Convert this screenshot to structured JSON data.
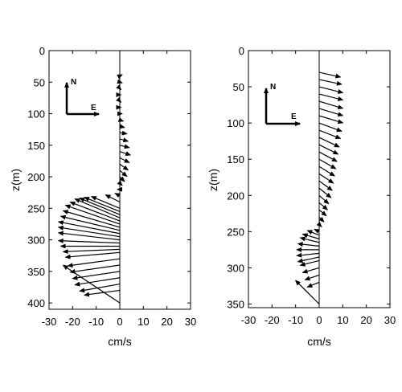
{
  "chart_data": [
    {
      "type": "quiver",
      "title": "",
      "xlabel": "cm/s",
      "ylabel": "z(m)",
      "xlim": [
        -30,
        30
      ],
      "ylim": [
        0,
        410
      ],
      "y_reversed": true,
      "xticks": [
        -30,
        -20,
        -10,
        0,
        10,
        20,
        30
      ],
      "yticks": [
        0,
        50,
        100,
        150,
        200,
        250,
        300,
        350,
        400
      ],
      "xtick_labels": [
        "-30",
        "-20",
        "-10",
        "0",
        "10",
        "20",
        "30"
      ],
      "ytick_labels": [
        "0",
        "50",
        "100",
        "150",
        "200",
        "250",
        "300",
        "350",
        "400"
      ],
      "grid": false,
      "compass": {
        "north_label": "N",
        "east_label": "E",
        "placement": "upper-left"
      },
      "vectors": [
        {
          "z": 40,
          "u": 1,
          "v": 0.5
        },
        {
          "z": 50,
          "u": 1,
          "v": -0.3
        },
        {
          "z": 60,
          "u": 0.5,
          "v": -0.5
        },
        {
          "z": 70,
          "u": 0.5,
          "v": 0
        },
        {
          "z": 80,
          "u": 0.5,
          "v": -0.5
        },
        {
          "z": 90,
          "u": 0.5,
          "v": 0
        },
        {
          "z": 100,
          "u": 1,
          "v": 0
        },
        {
          "z": 110,
          "u": 1.5,
          "v": -0.5
        },
        {
          "z": 120,
          "u": 2,
          "v": -0.5
        },
        {
          "z": 130,
          "u": 3,
          "v": -0.5
        },
        {
          "z": 140,
          "u": 3.5,
          "v": -1
        },
        {
          "z": 150,
          "u": 4,
          "v": -1
        },
        {
          "z": 160,
          "u": 4.5,
          "v": -1.5
        },
        {
          "z": 170,
          "u": 4,
          "v": -2
        },
        {
          "z": 180,
          "u": 3.5,
          "v": -2.5
        },
        {
          "z": 190,
          "u": 3,
          "v": -2.5
        },
        {
          "z": 200,
          "u": 2,
          "v": -2
        },
        {
          "z": 210,
          "u": 1,
          "v": -1
        },
        {
          "z": 220,
          "u": -1,
          "v": 0
        },
        {
          "z": 230,
          "u": -2,
          "v": 1
        },
        {
          "z": 240,
          "u": -6,
          "v": 3
        },
        {
          "z": 250,
          "u": -12,
          "v": 5
        },
        {
          "z": 255,
          "u": -15,
          "v": 6
        },
        {
          "z": 260,
          "u": -17,
          "v": 7
        },
        {
          "z": 265,
          "u": -19,
          "v": 8
        },
        {
          "z": 270,
          "u": -21,
          "v": 8
        },
        {
          "z": 275,
          "u": -23,
          "v": 8
        },
        {
          "z": 280,
          "u": -24,
          "v": 7
        },
        {
          "z": 285,
          "u": -25,
          "v": 6
        },
        {
          "z": 290,
          "u": -26,
          "v": 5
        },
        {
          "z": 295,
          "u": -26,
          "v": 4
        },
        {
          "z": 300,
          "u": -26,
          "v": 3
        },
        {
          "z": 305,
          "u": -26,
          "v": 1
        },
        {
          "z": 310,
          "u": -25,
          "v": 0
        },
        {
          "z": 315,
          "u": -24,
          "v": -1
        },
        {
          "z": 320,
          "u": -23,
          "v": -2
        },
        {
          "z": 330,
          "u": -22,
          "v": -3
        },
        {
          "z": 340,
          "u": -21,
          "v": -3
        },
        {
          "z": 350,
          "u": -20,
          "v": -3
        },
        {
          "z": 360,
          "u": -19,
          "v": -3
        },
        {
          "z": 370,
          "u": -17,
          "v": -3
        },
        {
          "z": 380,
          "u": -15,
          "v": -2
        },
        {
          "z": 400,
          "u": -24,
          "v": 16
        }
      ]
    },
    {
      "type": "quiver",
      "title": "",
      "xlabel": "cm/s",
      "ylabel": "z(m)",
      "xlim": [
        -30,
        30
      ],
      "ylim": [
        0,
        355
      ],
      "y_reversed": true,
      "xticks": [
        -30,
        -20,
        -10,
        0,
        10,
        20,
        30
      ],
      "yticks": [
        0,
        50,
        100,
        150,
        200,
        250,
        300,
        350
      ],
      "xtick_labels": [
        "-30",
        "-20",
        "-10",
        "0",
        "10",
        "20",
        "30"
      ],
      "ytick_labels": [
        "0",
        "50",
        "100",
        "150",
        "200",
        "250",
        "300",
        "350"
      ],
      "grid": false,
      "compass": {
        "north_label": "N",
        "east_label": "E",
        "placement": "upper-left"
      },
      "vectors": [
        {
          "z": 30,
          "u": 9,
          "v": -2
        },
        {
          "z": 40,
          "u": 9.5,
          "v": -2
        },
        {
          "z": 50,
          "u": 10,
          "v": -2.5
        },
        {
          "z": 60,
          "u": 10,
          "v": -2.5
        },
        {
          "z": 70,
          "u": 10,
          "v": -3
        },
        {
          "z": 80,
          "u": 10,
          "v": -3
        },
        {
          "z": 90,
          "u": 10,
          "v": -3
        },
        {
          "z": 100,
          "u": 9.5,
          "v": -3.5
        },
        {
          "z": 110,
          "u": 9,
          "v": -3.5
        },
        {
          "z": 120,
          "u": 8.5,
          "v": -4
        },
        {
          "z": 130,
          "u": 8,
          "v": -4
        },
        {
          "z": 140,
          "u": 7.5,
          "v": -4
        },
        {
          "z": 150,
          "u": 7,
          "v": -4
        },
        {
          "z": 160,
          "u": 6.5,
          "v": -4
        },
        {
          "z": 170,
          "u": 6,
          "v": -4
        },
        {
          "z": 180,
          "u": 5.5,
          "v": -4
        },
        {
          "z": 190,
          "u": 5,
          "v": -4
        },
        {
          "z": 200,
          "u": 4,
          "v": -3.5
        },
        {
          "z": 210,
          "u": 3.5,
          "v": -3
        },
        {
          "z": 220,
          "u": 3,
          "v": -2.5
        },
        {
          "z": 230,
          "u": 2,
          "v": -2
        },
        {
          "z": 240,
          "u": 1,
          "v": -1
        },
        {
          "z": 250,
          "u": -2,
          "v": 1
        },
        {
          "z": 255,
          "u": -5,
          "v": 2
        },
        {
          "z": 260,
          "u": -7,
          "v": 2
        },
        {
          "z": 265,
          "u": -8,
          "v": 2
        },
        {
          "z": 270,
          "u": -9,
          "v": 1
        },
        {
          "z": 275,
          "u": -9.5,
          "v": 0
        },
        {
          "z": 280,
          "u": -9.5,
          "v": -1
        },
        {
          "z": 285,
          "u": -9,
          "v": -2
        },
        {
          "z": 290,
          "u": -8,
          "v": -2
        },
        {
          "z": 300,
          "u": -7,
          "v": -2
        },
        {
          "z": 310,
          "u": -6,
          "v": -2
        },
        {
          "z": 320,
          "u": -5,
          "v": -2
        },
        {
          "z": 350,
          "u": -10,
          "v": 10
        }
      ]
    }
  ]
}
